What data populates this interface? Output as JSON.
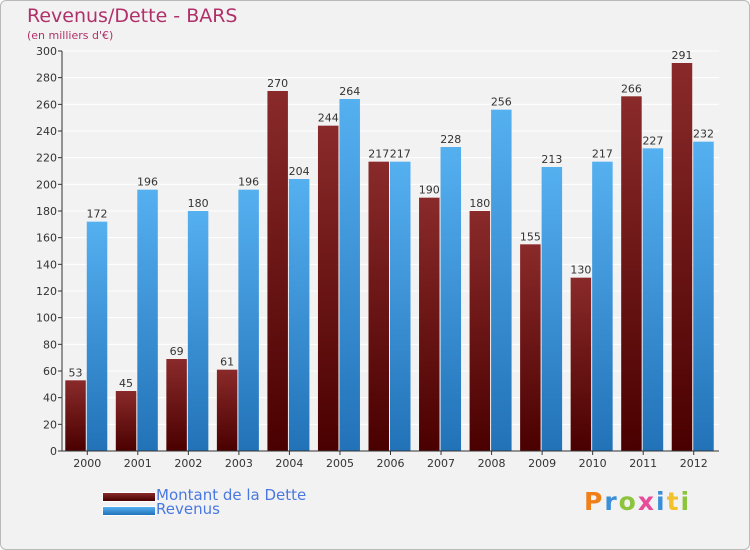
{
  "chart_data": {
    "type": "bar",
    "title": "Revenus/Dette - BARS",
    "subtitle": "(en milliers d'€)",
    "categories": [
      "2000",
      "2001",
      "2002",
      "2003",
      "2004",
      "2005",
      "2006",
      "2007",
      "2008",
      "2009",
      "2010",
      "2011",
      "2012"
    ],
    "series": [
      {
        "name": "Montant de la Dette",
        "color": "#7a1a1a",
        "values": [
          53,
          45,
          69,
          61,
          270,
          244,
          217,
          190,
          180,
          155,
          130,
          266,
          291
        ]
      },
      {
        "name": "Revenus",
        "color": "#4aa3e6",
        "values": [
          172,
          196,
          180,
          196,
          204,
          264,
          217,
          228,
          256,
          213,
          217,
          227,
          232
        ]
      }
    ],
    "ylim": [
      0,
      300
    ],
    "yticks": [
      0,
      20,
      40,
      60,
      80,
      100,
      120,
      140,
      160,
      180,
      200,
      220,
      240,
      260,
      280,
      300
    ],
    "grid": true,
    "xlabel": "",
    "ylabel": "",
    "legend_position": "bottom-left"
  },
  "logo": {
    "text": "Proxiti",
    "colors": [
      "#f07f1a",
      "#3a8fd9",
      "#8cc43c",
      "#e74c9a",
      "#3a8fd9",
      "#f2c12e",
      "#8cc43c"
    ]
  }
}
